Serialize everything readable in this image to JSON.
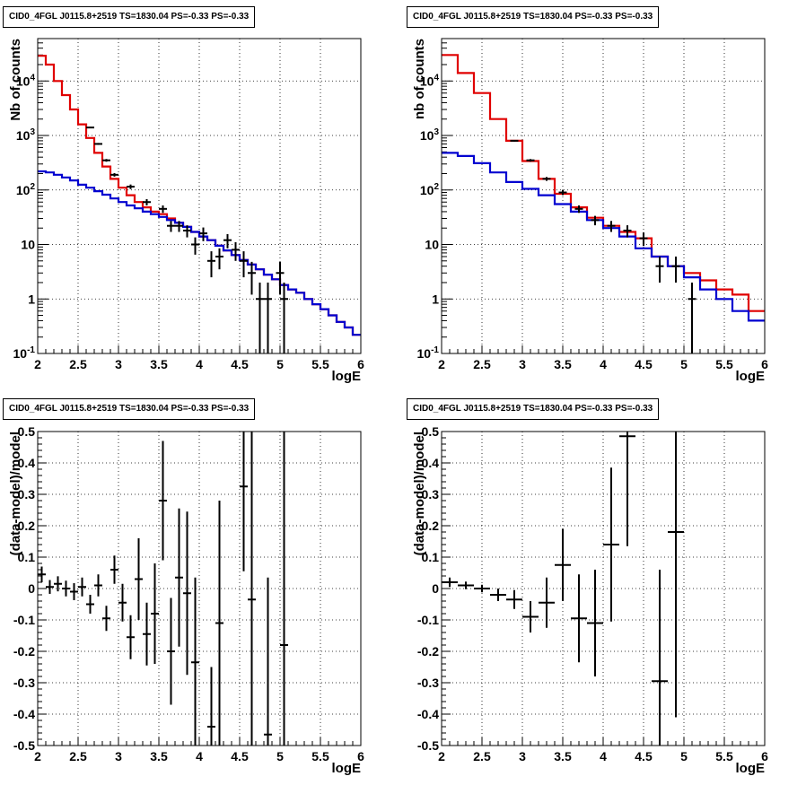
{
  "chart_data": [
    {
      "type": "histogram",
      "title": "CID0_4FGL J0115.8+2519 TS=1830.04 PS=-0.33 PS=-0.33",
      "xlabel": "logE",
      "ylabel": "Nb of counts",
      "xlim": [
        2,
        6
      ],
      "ylim": [
        0.1,
        60000
      ],
      "yscale": "log",
      "grid": true,
      "xticks": [
        "2",
        "2.5",
        "3",
        "3.5",
        "4",
        "4.5",
        "5",
        "5.5",
        "6"
      ],
      "yticks": [
        "10^-1",
        "1",
        "10",
        "10^2",
        "10^3",
        "10^4"
      ],
      "bin_edges": [
        2.0,
        2.1,
        2.2,
        2.3,
        2.4,
        2.5,
        2.6,
        2.7,
        2.8,
        2.9,
        3.0,
        3.1,
        3.2,
        3.3,
        3.4,
        3.5,
        3.6,
        3.7,
        3.8,
        3.9,
        4.0,
        4.1,
        4.2,
        4.3,
        4.4,
        4.5,
        4.6,
        4.7,
        4.8,
        4.9,
        5.0,
        5.1,
        5.2,
        5.3,
        5.4,
        5.5,
        5.6,
        5.7,
        5.8,
        5.9,
        6.0
      ],
      "series": [
        {
          "kind": "model_total",
          "color": "#e00000",
          "values": [
            29000,
            20000,
            10000,
            5500,
            3000,
            1600,
            900,
            480,
            270,
            160,
            110,
            80,
            60,
            48,
            40,
            36,
            30,
            25,
            21,
            17,
            14,
            12,
            9.5,
            7.8,
            6.4,
            5.2,
            4.3,
            3.5,
            2.8,
            2.3,
            1.8,
            1.5,
            1.3,
            1.0,
            0.8,
            0.65,
            0.5,
            0.38,
            0.3,
            0.22
          ]
        },
        {
          "kind": "model_component",
          "color": "#0000d0",
          "values": [
            220,
            210,
            190,
            170,
            150,
            125,
            110,
            95,
            82,
            70,
            60,
            52,
            46,
            40,
            36,
            32,
            28,
            25,
            21,
            17,
            14,
            12,
            9.5,
            7.8,
            6.4,
            5.2,
            4.3,
            3.5,
            2.8,
            2.3,
            1.8,
            1.5,
            1.3,
            1.0,
            0.8,
            0.65,
            0.5,
            0.38,
            0.3,
            0.22
          ]
        },
        {
          "kind": "data",
          "color": "#000000",
          "points": [
            {
              "x": 2.65,
              "y": 1400,
              "err": 40
            },
            {
              "x": 2.75,
              "y": 700,
              "err": 28
            },
            {
              "x": 2.85,
              "y": 350,
              "err": 20
            },
            {
              "x": 2.95,
              "y": 190,
              "err": 14
            },
            {
              "x": 3.15,
              "y": 115,
              "err": 11
            },
            {
              "x": 3.35,
              "y": 60,
              "err": 8
            },
            {
              "x": 3.55,
              "y": 45,
              "err": 7
            },
            {
              "x": 3.65,
              "y": 22,
              "err": 5
            },
            {
              "x": 3.75,
              "y": 22,
              "err": 5
            },
            {
              "x": 3.85,
              "y": 18,
              "err": 4.5
            },
            {
              "x": 3.95,
              "y": 10,
              "err": 3.5
            },
            {
              "x": 4.05,
              "y": 16,
              "err": 4.5
            },
            {
              "x": 4.15,
              "y": 5,
              "err": 2.5
            },
            {
              "x": 4.25,
              "y": 6,
              "err": 2.5
            },
            {
              "x": 4.35,
              "y": 12,
              "err": 3.5
            },
            {
              "x": 4.45,
              "y": 8,
              "err": 3
            },
            {
              "x": 4.55,
              "y": 5,
              "err": 2.5
            },
            {
              "x": 4.65,
              "y": 3,
              "err": 1.8
            },
            {
              "x": 4.75,
              "y": 1,
              "err": 1
            },
            {
              "x": 4.85,
              "y": 1,
              "err": 1
            },
            {
              "x": 5.0,
              "y": 3,
              "err": 1.8
            },
            {
              "x": 5.05,
              "y": 1,
              "err": 1
            }
          ]
        }
      ]
    },
    {
      "type": "histogram",
      "title": "CID0_4FGL J0115.8+2519 TS=1830.04 PS=-0.33 PS=-0.33",
      "xlabel": "logE",
      "ylabel": "nb of counts",
      "xlim": [
        2,
        6
      ],
      "ylim": [
        0.1,
        60000
      ],
      "yscale": "log",
      "grid": true,
      "xticks": [
        "2",
        "2.5",
        "3",
        "3.5",
        "4",
        "4.5",
        "5",
        "5.5",
        "6"
      ],
      "yticks": [
        "10^-1",
        "1",
        "10",
        "10^2",
        "10^3",
        "10^4"
      ],
      "bin_edges": [
        2.0,
        2.2,
        2.4,
        2.6,
        2.8,
        3.0,
        3.2,
        3.4,
        3.6,
        3.8,
        4.0,
        4.2,
        4.4,
        4.6,
        4.8,
        5.0,
        5.2,
        5.4,
        5.6,
        5.8,
        6.0
      ],
      "series": [
        {
          "kind": "model_total",
          "color": "#e00000",
          "values": [
            30000,
            14000,
            6000,
            2000,
            800,
            340,
            160,
            85,
            48,
            31,
            22,
            17,
            13,
            6,
            4,
            3,
            2.2,
            1.5,
            1.2,
            0.6
          ]
        },
        {
          "kind": "model_component",
          "color": "#0000d0",
          "values": [
            480,
            420,
            310,
            210,
            140,
            105,
            80,
            55,
            40,
            28,
            20,
            14,
            8.5,
            6,
            4,
            2.5,
            1.5,
            1.0,
            0.6,
            0.4
          ]
        },
        {
          "kind": "data",
          "color": "#000000",
          "points": [
            {
              "x": 2.9,
              "y": 800,
              "err": 28
            },
            {
              "x": 3.1,
              "y": 350,
              "err": 19
            },
            {
              "x": 3.3,
              "y": 160,
              "err": 13
            },
            {
              "x": 3.5,
              "y": 90,
              "err": 9.5
            },
            {
              "x": 3.7,
              "y": 45,
              "err": 7
            },
            {
              "x": 3.9,
              "y": 28,
              "err": 5.5
            },
            {
              "x": 4.1,
              "y": 22,
              "err": 5
            },
            {
              "x": 4.3,
              "y": 18,
              "err": 4.5
            },
            {
              "x": 4.5,
              "y": 13,
              "err": 3.6
            },
            {
              "x": 4.7,
              "y": 4,
              "err": 2
            },
            {
              "x": 4.9,
              "y": 4,
              "err": 2
            },
            {
              "x": 5.1,
              "y": 1,
              "err": 1
            }
          ]
        }
      ]
    },
    {
      "type": "scatter",
      "title": "CID0_4FGL J0115.8+2519 TS=1830.04 PS=-0.33 PS=-0.33",
      "xlabel": "logE",
      "ylabel": "(data-model)/model",
      "xlim": [
        2,
        6
      ],
      "ylim": [
        -0.5,
        0.5
      ],
      "grid": true,
      "xticks": [
        "2",
        "2.5",
        "3",
        "3.5",
        "4",
        "4.5",
        "5",
        "5.5",
        "6"
      ],
      "yticks": [
        "-0.5",
        "-0.4",
        "-0.3",
        "-0.2",
        "-0.1",
        "0",
        "0.1",
        "0.2",
        "0.3",
        "0.4",
        "0.5"
      ],
      "xerr": 0.05,
      "points": [
        {
          "x": 2.05,
          "y": 0.045,
          "err": 0.025
        },
        {
          "x": 2.15,
          "y": 0.005,
          "err": 0.022
        },
        {
          "x": 2.25,
          "y": 0.015,
          "err": 0.024
        },
        {
          "x": 2.35,
          "y": 0.0,
          "err": 0.025
        },
        {
          "x": 2.45,
          "y": -0.01,
          "err": 0.027
        },
        {
          "x": 2.55,
          "y": 0.005,
          "err": 0.03
        },
        {
          "x": 2.65,
          "y": -0.05,
          "err": 0.03
        },
        {
          "x": 2.75,
          "y": 0.01,
          "err": 0.035
        },
        {
          "x": 2.85,
          "y": -0.095,
          "err": 0.04
        },
        {
          "x": 2.95,
          "y": 0.06,
          "err": 0.045
        },
        {
          "x": 3.05,
          "y": -0.045,
          "err": 0.06
        },
        {
          "x": 3.15,
          "y": -0.155,
          "err": 0.07
        },
        {
          "x": 3.25,
          "y": 0.03,
          "err": 0.13
        },
        {
          "x": 3.35,
          "y": -0.145,
          "err": 0.1
        },
        {
          "x": 3.45,
          "y": -0.08,
          "err": 0.16
        },
        {
          "x": 3.55,
          "y": 0.28,
          "err": 0.19
        },
        {
          "x": 3.65,
          "y": -0.2,
          "err": 0.17
        },
        {
          "x": 3.75,
          "y": 0.035,
          "err": 0.22
        },
        {
          "x": 3.85,
          "y": -0.015,
          "err": 0.26
        },
        {
          "x": 3.95,
          "y": -0.235,
          "err": 0.27
        },
        {
          "x": 4.15,
          "y": -0.44,
          "err": 0.19
        },
        {
          "x": 4.25,
          "y": -0.11,
          "err": 0.39
        },
        {
          "x": 4.55,
          "y": 0.325,
          "err": 0.27
        },
        {
          "x": 4.65,
          "y": -0.035,
          "err": 0.6
        },
        {
          "x": 4.85,
          "y": -0.465,
          "err": 0.5
        },
        {
          "x": 5.05,
          "y": -0.18,
          "err": 0.75
        }
      ]
    },
    {
      "type": "scatter",
      "title": "CID0_4FGL J0115.8+2519 TS=1830.04 PS=-0.33 PS=-0.33",
      "xlabel": "logE",
      "ylabel": "(data-model)/model",
      "xlim": [
        2,
        6
      ],
      "ylim": [
        -0.5,
        0.5
      ],
      "grid": true,
      "xticks": [
        "2",
        "2.5",
        "3",
        "3.5",
        "4",
        "4.5",
        "5",
        "5.5",
        "6"
      ],
      "yticks": [
        "-0.5",
        "-0.4",
        "-0.3",
        "-0.2",
        "-0.1",
        "0",
        "0.1",
        "0.2",
        "0.3",
        "0.4",
        "0.5"
      ],
      "xerr": 0.1,
      "points": [
        {
          "x": 2.1,
          "y": 0.02,
          "err": 0.015
        },
        {
          "x": 2.3,
          "y": 0.01,
          "err": 0.012
        },
        {
          "x": 2.5,
          "y": 0.0,
          "err": 0.012
        },
        {
          "x": 2.7,
          "y": -0.02,
          "err": 0.02
        },
        {
          "x": 2.9,
          "y": -0.035,
          "err": 0.03
        },
        {
          "x": 3.1,
          "y": -0.09,
          "err": 0.05
        },
        {
          "x": 3.3,
          "y": -0.045,
          "err": 0.08
        },
        {
          "x": 3.5,
          "y": 0.075,
          "err": 0.115
        },
        {
          "x": 3.7,
          "y": -0.095,
          "err": 0.14
        },
        {
          "x": 3.9,
          "y": -0.11,
          "err": 0.17
        },
        {
          "x": 4.1,
          "y": 0.14,
          "err": 0.245
        },
        {
          "x": 4.3,
          "y": 0.485,
          "err": 0.35
        },
        {
          "x": 4.7,
          "y": -0.295,
          "err": 0.355
        },
        {
          "x": 4.9,
          "y": 0.18,
          "err": 0.59
        }
      ]
    }
  ]
}
